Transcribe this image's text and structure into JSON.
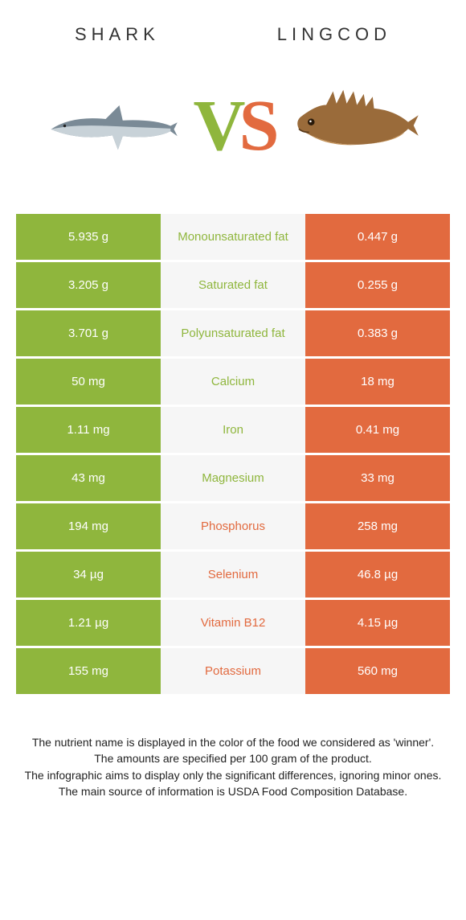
{
  "header": {
    "left_title": "Shark",
    "right_title": "Lingcod"
  },
  "vs": {
    "v": "V",
    "s": "S"
  },
  "colors": {
    "left": "#8fb63d",
    "right": "#e26a3f",
    "mid_bg": "#f6f6f6",
    "text_white": "#ffffff"
  },
  "rows": [
    {
      "left": "5.935 g",
      "label": "Monounsaturated fat",
      "right": "0.447 g",
      "winner": "left"
    },
    {
      "left": "3.205 g",
      "label": "Saturated fat",
      "right": "0.255 g",
      "winner": "left"
    },
    {
      "left": "3.701 g",
      "label": "Polyunsaturated fat",
      "right": "0.383 g",
      "winner": "left"
    },
    {
      "left": "50 mg",
      "label": "Calcium",
      "right": "18 mg",
      "winner": "left"
    },
    {
      "left": "1.11 mg",
      "label": "Iron",
      "right": "0.41 mg",
      "winner": "left"
    },
    {
      "left": "43 mg",
      "label": "Magnesium",
      "right": "33 mg",
      "winner": "left"
    },
    {
      "left": "194 mg",
      "label": "Phosphorus",
      "right": "258 mg",
      "winner": "right"
    },
    {
      "left": "34 µg",
      "label": "Selenium",
      "right": "46.8 µg",
      "winner": "right"
    },
    {
      "left": "1.21 µg",
      "label": "Vitamin B12",
      "right": "4.15 µg",
      "winner": "right"
    },
    {
      "left": "155 mg",
      "label": "Potassium",
      "right": "560 mg",
      "winner": "right"
    }
  ],
  "footnote": {
    "line1": "The nutrient name is displayed in the color of the food we considered as 'winner'.",
    "line2": "The amounts are specified per 100 gram of the product.",
    "line3": "The infographic aims to display only the significant differences, ignoring minor ones.",
    "line4": "The main source of information is USDA Food Composition Database."
  }
}
